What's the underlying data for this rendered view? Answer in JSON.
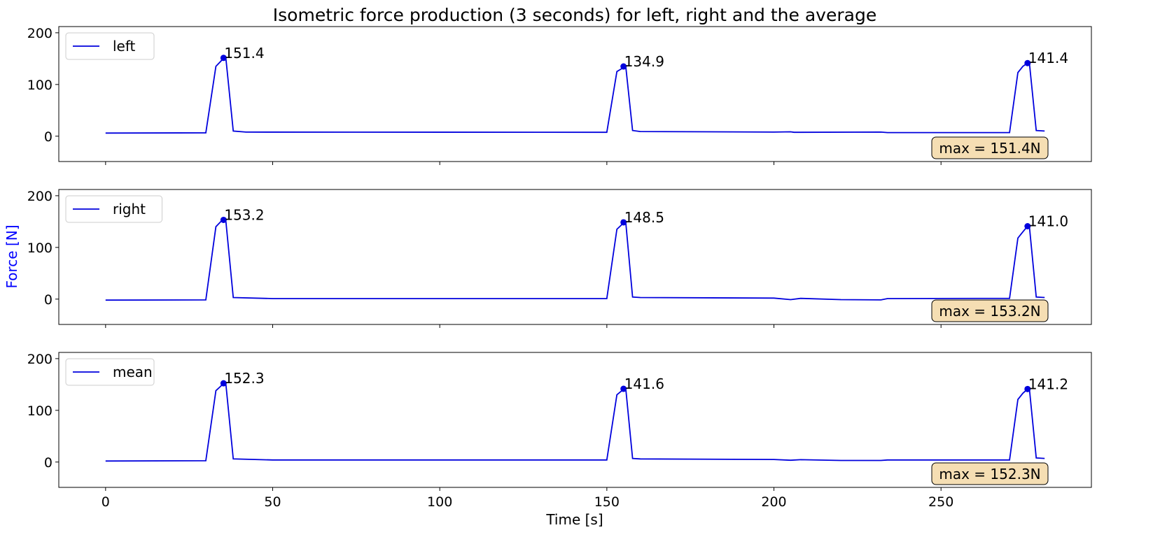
{
  "chart_data": [
    {
      "type": "line",
      "title": "Isometric force production (3 seconds) for left, right and the average",
      "xlabel": "Time [s]",
      "ylabel": "Force [N]",
      "ylabel_color": "#0000ff",
      "xlim": [
        -14,
        295
      ],
      "ylim": [
        -49,
        212
      ],
      "xticks": [
        0,
        50,
        100,
        150,
        200,
        250
      ],
      "yticks": [
        0,
        100,
        200
      ],
      "grid": false,
      "line_color": "#0000dd",
      "box_color": "#f5deb3",
      "panels": [
        {
          "legend": "left",
          "legend_placement": "top-left",
          "max_label": "max = 151.4N",
          "peaks": [
            {
              "x": 35.3,
              "y": 151.4,
              "label": "151.4"
            },
            {
              "x": 155.0,
              "y": 134.9,
              "label": "134.9"
            },
            {
              "x": 275.9,
              "y": 141.4,
              "label": "141.4"
            }
          ],
          "points": [
            [
              0,
              6
            ],
            [
              30,
              6.5
            ],
            [
              33,
              135
            ],
            [
              34.5,
              145
            ],
            [
              35.3,
              151.4
            ],
            [
              36,
              150
            ],
            [
              38.2,
              10
            ],
            [
              42,
              8
            ],
            [
              150,
              7.5
            ],
            [
              153,
              125
            ],
            [
              154.3,
              130
            ],
            [
              155,
              134.9
            ],
            [
              155.7,
              132
            ],
            [
              157.7,
              11
            ],
            [
              160,
              9
            ],
            [
              200,
              8
            ],
            [
              205,
              8.5
            ],
            [
              206,
              7.5
            ],
            [
              232,
              8
            ],
            [
              234,
              7
            ],
            [
              270.5,
              7
            ],
            [
              273,
              123
            ],
            [
              274.5,
              135
            ],
            [
              275.9,
              141.4
            ],
            [
              276.5,
              138
            ],
            [
              278.5,
              11
            ],
            [
              281,
              10
            ]
          ]
        },
        {
          "legend": "right",
          "legend_placement": "top-left",
          "max_label": "max = 153.2N",
          "peaks": [
            {
              "x": 35.3,
              "y": 153.2,
              "label": "153.2"
            },
            {
              "x": 155.0,
              "y": 148.5,
              "label": "148.5"
            },
            {
              "x": 275.9,
              "y": 141.0,
              "label": "141.0"
            }
          ],
          "points": [
            [
              0,
              -2
            ],
            [
              30,
              -1.5
            ],
            [
              33,
              140
            ],
            [
              34.5,
              150
            ],
            [
              35.3,
              153.2
            ],
            [
              36,
              150
            ],
            [
              38.2,
              3
            ],
            [
              50,
              1
            ],
            [
              150,
              1
            ],
            [
              153,
              135
            ],
            [
              154.3,
              143
            ],
            [
              155,
              148.5
            ],
            [
              155.7,
              145
            ],
            [
              157.7,
              4
            ],
            [
              160,
              3
            ],
            [
              200,
              2
            ],
            [
              205,
              -1
            ],
            [
              208,
              1.5
            ],
            [
              220,
              -1
            ],
            [
              232,
              -1.5
            ],
            [
              234,
              1
            ],
            [
              270.5,
              1.5
            ],
            [
              273,
              118
            ],
            [
              274.5,
              130
            ],
            [
              275.9,
              141
            ],
            [
              276.5,
              137
            ],
            [
              278.5,
              4
            ],
            [
              281,
              3
            ]
          ]
        },
        {
          "legend": "mean",
          "legend_placement": "top-left",
          "max_label": "max = 152.3N",
          "peaks": [
            {
              "x": 35.3,
              "y": 152.3,
              "label": "152.3"
            },
            {
              "x": 155.0,
              "y": 141.6,
              "label": "141.6"
            },
            {
              "x": 275.9,
              "y": 141.2,
              "label": "141.2"
            }
          ],
          "points": [
            [
              0,
              2
            ],
            [
              30,
              2.5
            ],
            [
              33,
              138
            ],
            [
              34.5,
              147
            ],
            [
              35.3,
              152.3
            ],
            [
              36,
              150
            ],
            [
              38.2,
              6
            ],
            [
              50,
              4
            ],
            [
              150,
              4
            ],
            [
              153,
              130
            ],
            [
              154.3,
              137
            ],
            [
              155,
              141.6
            ],
            [
              155.7,
              139
            ],
            [
              157.7,
              7
            ],
            [
              160,
              6
            ],
            [
              200,
              5
            ],
            [
              205,
              3.5
            ],
            [
              208,
              4.5
            ],
            [
              220,
              3
            ],
            [
              232,
              3
            ],
            [
              234,
              4
            ],
            [
              270.5,
              4
            ],
            [
              273,
              121
            ],
            [
              274.5,
              133
            ],
            [
              275.9,
              141.2
            ],
            [
              276.5,
              138
            ],
            [
              278.5,
              8
            ],
            [
              281,
              7
            ]
          ]
        }
      ]
    }
  ]
}
